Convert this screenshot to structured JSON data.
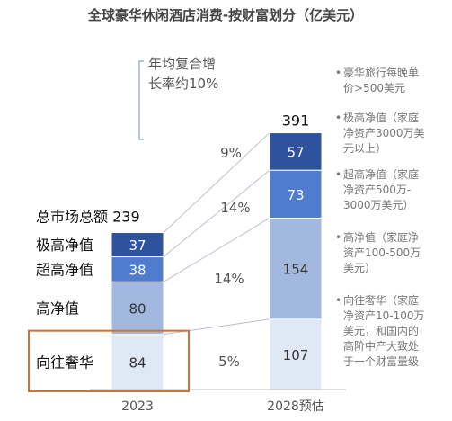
{
  "chart_data": {
    "type": "bar",
    "title": "全球豪华休闲酒店消费-按财富划分（亿美元）",
    "categories": [
      "2023",
      "2028预估"
    ],
    "series": [
      {
        "name": "向往奢华",
        "values": [
          84,
          107
        ],
        "color": "#dfe9f5",
        "label_color": "#333333"
      },
      {
        "name": "高净值",
        "values": [
          80,
          154
        ],
        "color": "#a2b8df",
        "label_color": "#333333"
      },
      {
        "name": "超高净值",
        "values": [
          38,
          73
        ],
        "color": "#4f7ccd",
        "label_color": "#ffffff"
      },
      {
        "name": "极高净值",
        "values": [
          37,
          57
        ],
        "color": "#2d539e",
        "label_color": "#ffffff"
      }
    ],
    "totals": [
      239,
      391
    ],
    "total_label": "总市场总额",
    "cagr": [
      "5%",
      "14%",
      "14%",
      "9%"
    ],
    "cagr_note": [
      "年均复合增",
      "长率约10%"
    ],
    "legend_notes": [
      [
        "豪华旅行每晚单",
        "价>500美元"
      ],
      [
        "极高净值（家庭",
        "净资产3000万美",
        "元以上）"
      ],
      [
        "超高净值（家庭",
        "净资产500万-",
        "3000万美元）"
      ],
      [
        "高净值（家庭净",
        "资产100-500万",
        "美元）"
      ],
      [
        "向往奢华（家庭",
        "净资产10-100万",
        "美元，和国内的",
        "高阶中产大致处",
        "于一个财富量级"
      ]
    ],
    "highlight": "向往奢华",
    "highlight_color": "#c8743a",
    "stacked": true
  }
}
